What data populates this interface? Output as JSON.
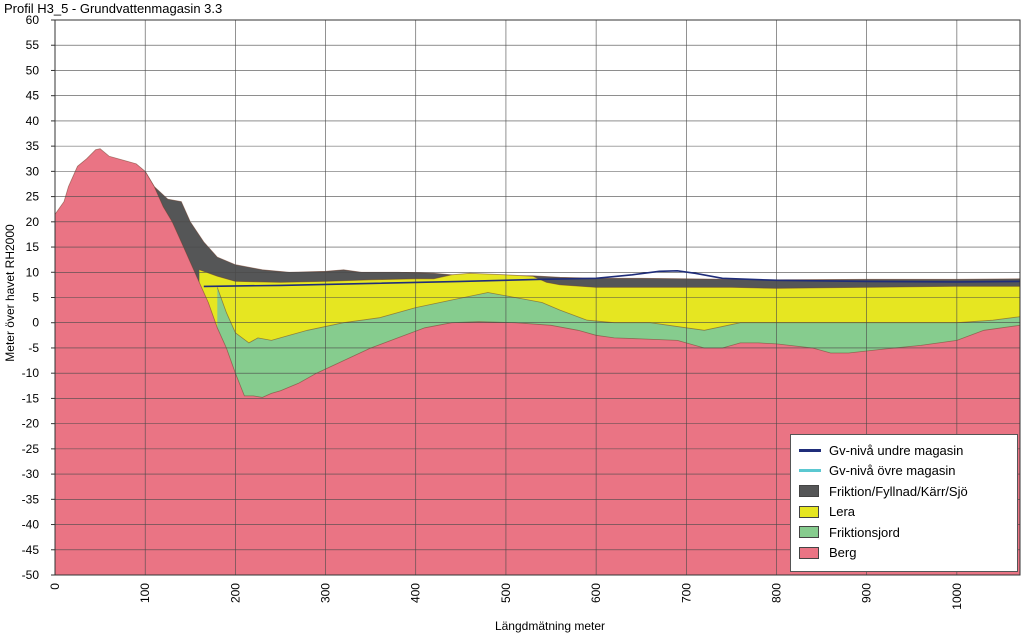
{
  "chart_data": {
    "type": "area",
    "title": "Profil H3_5 - Grundvattenmagasin 3.3",
    "xlabel": "Längdmätning meter",
    "ylabel": "Meter över havet RH2000",
    "xlim": [
      0,
      1070
    ],
    "ylim": [
      -50,
      60
    ],
    "xticks": [
      0,
      100,
      200,
      300,
      400,
      500,
      600,
      700,
      800,
      900,
      1000
    ],
    "yticks": [
      60,
      55,
      50,
      45,
      40,
      35,
      30,
      25,
      20,
      15,
      10,
      5,
      0,
      -5,
      -10,
      -15,
      -20,
      -25,
      -30,
      -35,
      -40,
      -45,
      -50
    ],
    "grid": true,
    "legend_position": "bottom-right",
    "layers": [
      {
        "name": "Friktion/Fyllnad/Kärr/Sjö",
        "color": "#555657",
        "top": [
          [
            100,
            30
          ],
          [
            110,
            27
          ],
          [
            125,
            24.5
          ],
          [
            140,
            24
          ],
          [
            150,
            20
          ],
          [
            165,
            16
          ],
          [
            180,
            13
          ],
          [
            200,
            11.5
          ],
          [
            230,
            10.5
          ],
          [
            260,
            10
          ],
          [
            300,
            10.2
          ],
          [
            320,
            10.5
          ],
          [
            340,
            10
          ],
          [
            380,
            10
          ],
          [
            420,
            9.8
          ],
          [
            440,
            9.5
          ],
          [
            500,
            9.3
          ],
          [
            530,
            9.3
          ],
          [
            560,
            9
          ],
          [
            600,
            8.8
          ],
          [
            650,
            8.8
          ],
          [
            700,
            8.7
          ],
          [
            800,
            8.5
          ],
          [
            900,
            8.6
          ],
          [
            1000,
            8.6
          ],
          [
            1070,
            8.7
          ]
        ]
      },
      {
        "name": "Lera",
        "color": "#e6e621",
        "top": [
          [
            160,
            10.5
          ],
          [
            180,
            9.2
          ],
          [
            200,
            8.2
          ],
          [
            250,
            8
          ],
          [
            300,
            8.2
          ],
          [
            350,
            8.5
          ],
          [
            400,
            8.7
          ],
          [
            420,
            8.7
          ],
          [
            440,
            9.5
          ],
          [
            460,
            9.8
          ],
          [
            500,
            9.5
          ],
          [
            530,
            9.2
          ],
          [
            545,
            8
          ],
          [
            560,
            7.5
          ],
          [
            600,
            7
          ],
          [
            650,
            7
          ],
          [
            700,
            7
          ],
          [
            750,
            7
          ],
          [
            800,
            6.8
          ],
          [
            900,
            7
          ],
          [
            1000,
            7.2
          ],
          [
            1070,
            7.2
          ]
        ]
      },
      {
        "name": "Friktionsjord",
        "color": "#86cc8e",
        "top": [
          [
            180,
            7
          ],
          [
            190,
            2
          ],
          [
            200,
            -2
          ],
          [
            215,
            -4
          ],
          [
            225,
            -3
          ],
          [
            240,
            -3.5
          ],
          [
            260,
            -2.5
          ],
          [
            280,
            -1.5
          ],
          [
            320,
            0
          ],
          [
            360,
            1
          ],
          [
            400,
            3
          ],
          [
            440,
            4.5
          ],
          [
            480,
            6
          ],
          [
            510,
            5
          ],
          [
            540,
            4
          ],
          [
            560,
            2.5
          ],
          [
            590,
            0.5
          ],
          [
            620,
            0
          ],
          [
            660,
            0
          ],
          [
            700,
            -1
          ],
          [
            720,
            -1.5
          ],
          [
            760,
            0
          ],
          [
            800,
            0
          ],
          [
            880,
            0
          ],
          [
            940,
            0
          ],
          [
            1000,
            0
          ],
          [
            1040,
            0.5
          ],
          [
            1070,
            1.2
          ]
        ]
      },
      {
        "name": "Berg",
        "color": "#ea7484",
        "top": [
          [
            0,
            21.5
          ],
          [
            10,
            24
          ],
          [
            15,
            27
          ],
          [
            25,
            31
          ],
          [
            35,
            32.5
          ],
          [
            45,
            34.3
          ],
          [
            50,
            34.5
          ],
          [
            60,
            33
          ],
          [
            70,
            32.5
          ],
          [
            80,
            32
          ],
          [
            90,
            31.5
          ],
          [
            100,
            30
          ],
          [
            110,
            27
          ],
          [
            120,
            23
          ],
          [
            130,
            20
          ],
          [
            140,
            16
          ],
          [
            150,
            12
          ],
          [
            160,
            8
          ],
          [
            170,
            4
          ],
          [
            180,
            -1
          ],
          [
            190,
            -5
          ],
          [
            200,
            -10
          ],
          [
            210,
            -14.5
          ],
          [
            220,
            -14.5
          ],
          [
            230,
            -14.8
          ],
          [
            240,
            -14
          ],
          [
            250,
            -13.5
          ],
          [
            270,
            -12
          ],
          [
            290,
            -10
          ],
          [
            320,
            -7.5
          ],
          [
            350,
            -5
          ],
          [
            380,
            -3
          ],
          [
            410,
            -1
          ],
          [
            440,
            0
          ],
          [
            470,
            0.2
          ],
          [
            510,
            0
          ],
          [
            550,
            -0.5
          ],
          [
            580,
            -1.5
          ],
          [
            600,
            -2.5
          ],
          [
            620,
            -3
          ],
          [
            650,
            -3.2
          ],
          [
            690,
            -3.5
          ],
          [
            720,
            -5
          ],
          [
            740,
            -5
          ],
          [
            760,
            -4
          ],
          [
            780,
            -4
          ],
          [
            800,
            -4.2
          ],
          [
            840,
            -5
          ],
          [
            860,
            -6
          ],
          [
            880,
            -6
          ],
          [
            920,
            -5.2
          ],
          [
            960,
            -4.5
          ],
          [
            1000,
            -3.5
          ],
          [
            1030,
            -1.5
          ],
          [
            1070,
            -0.5
          ]
        ]
      }
    ],
    "series": [
      {
        "name": "Gv-nivå undre magasin",
        "color": "#1f2d7a",
        "points": [
          [
            165,
            7.2
          ],
          [
            250,
            7.4
          ],
          [
            350,
            7.8
          ],
          [
            450,
            8.2
          ],
          [
            540,
            8.6
          ],
          [
            600,
            8.8
          ],
          [
            640,
            9.5
          ],
          [
            670,
            10.2
          ],
          [
            690,
            10.3
          ],
          [
            710,
            9.8
          ],
          [
            740,
            8.8
          ],
          [
            800,
            8.4
          ],
          [
            900,
            8.2
          ],
          [
            1000,
            8.1
          ],
          [
            1070,
            8.2
          ]
        ]
      },
      {
        "name": "Gv-nivå övre magasin",
        "color": "#5bc8d1",
        "points": []
      }
    ]
  },
  "legend": [
    {
      "label": "Gv-nivå undre magasin",
      "kind": "line",
      "color": "#1f2d7a"
    },
    {
      "label": "Gv-nivå övre magasin",
      "kind": "line",
      "color": "#5bc8d1"
    },
    {
      "label": "Friktion/Fyllnad/Kärr/Sjö",
      "kind": "box",
      "color": "#555657"
    },
    {
      "label": "Lera",
      "kind": "box",
      "color": "#e6e621"
    },
    {
      "label": "Friktionsjord",
      "kind": "box",
      "color": "#86cc8e"
    },
    {
      "label": "Berg",
      "kind": "box",
      "color": "#ea7484"
    }
  ]
}
